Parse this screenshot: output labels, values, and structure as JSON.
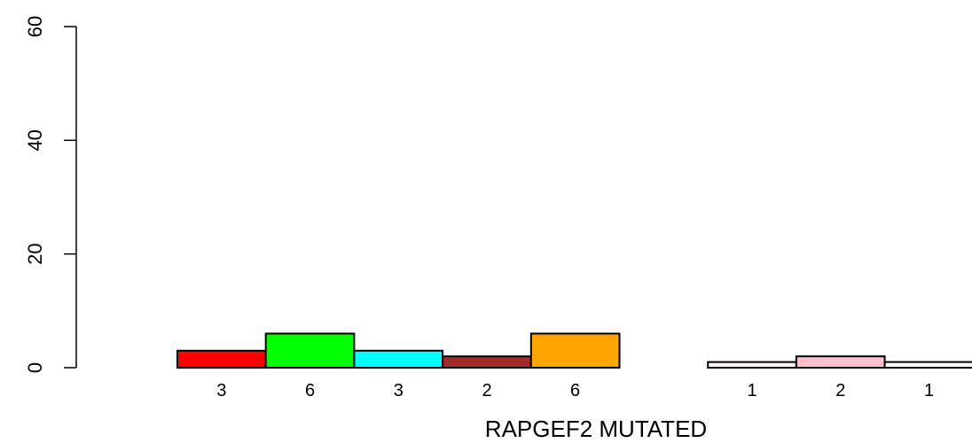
{
  "chart_data": {
    "type": "bar",
    "title": "",
    "xlabel": "RAPGEF2 MUTATED",
    "ylabel": "",
    "ylim": [
      0,
      60
    ],
    "yticks": [
      0,
      20,
      40,
      60
    ],
    "grid": false,
    "bars": [
      {
        "value": 3,
        "label": "3",
        "color": "#ff0000"
      },
      {
        "value": 6,
        "label": "6",
        "color": "#00ff00"
      },
      {
        "value": 3,
        "label": "3",
        "color": "#00ffff"
      },
      {
        "value": 2,
        "label": "2",
        "color": "#a52a2a"
      },
      {
        "value": 6,
        "label": "6",
        "color": "#ffa500"
      },
      {
        "value": 0,
        "label": "",
        "color": "#ffffff"
      },
      {
        "value": 1,
        "label": "1",
        "color": "#fff0f5"
      },
      {
        "value": 2,
        "label": "2",
        "color": "#ffc0cb"
      },
      {
        "value": 1,
        "label": "1",
        "color": "#ffffff"
      }
    ]
  }
}
